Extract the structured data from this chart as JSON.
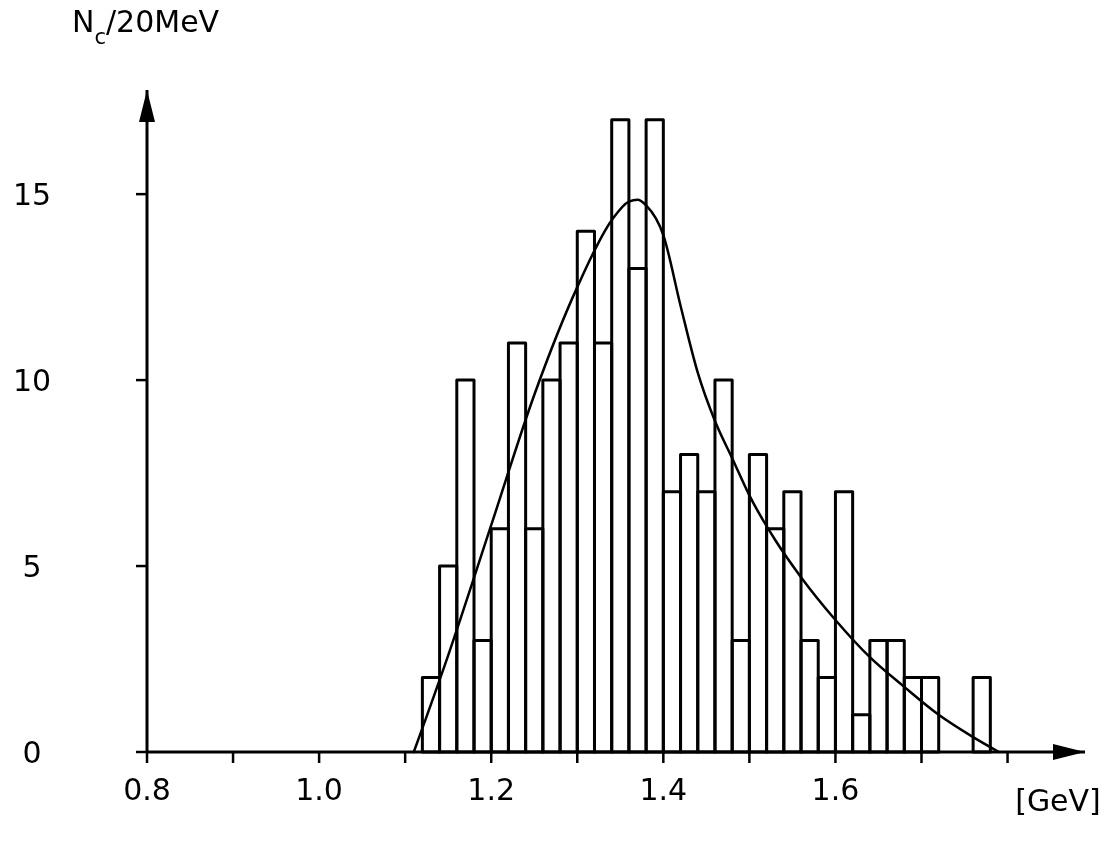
{
  "chart_data": {
    "type": "histogram",
    "ylabel": "N$_{c}$/20MeV",
    "xlabel": "[GeV]",
    "bins": [
      1.12,
      1.14,
      1.16,
      1.18,
      1.2,
      1.22,
      1.24,
      1.26,
      1.28,
      1.3,
      1.32,
      1.34,
      1.36,
      1.38,
      1.4,
      1.42,
      1.44,
      1.46,
      1.48,
      1.5,
      1.52,
      1.54,
      1.56,
      1.58,
      1.6,
      1.62,
      1.64,
      1.66,
      1.68,
      1.7,
      1.72,
      1.74,
      1.76,
      1.78
    ],
    "values": [
      2,
      5,
      10,
      3,
      6,
      11,
      6,
      10,
      11,
      14,
      11,
      17,
      13,
      17,
      7,
      8,
      7,
      10,
      3,
      8,
      6,
      7,
      3,
      2,
      7,
      1,
      3,
      3,
      2,
      2,
      0,
      0,
      2
    ],
    "color": "#000000",
    "series": [
      {
        "type": "line",
        "color": "#000000",
        "x": [
          1.11,
          1.15,
          1.2,
          1.25,
          1.3,
          1.34,
          1.36,
          1.37,
          1.38,
          1.4,
          1.42,
          1.44,
          1.46,
          1.48,
          1.5,
          1.53,
          1.56,
          1.6,
          1.64,
          1.68,
          1.72,
          1.76,
          1.79
        ],
        "values": [
          0,
          2.6,
          6.1,
          9.6,
          12.5,
          14.3,
          14.8,
          14.85,
          14.7,
          13.9,
          12.0,
          10.2,
          8.9,
          7.9,
          6.9,
          5.7,
          4.7,
          3.55,
          2.55,
          1.75,
          1.0,
          0.4,
          0
        ]
      }
    ],
    "xlim": [
      0.8,
      1.89
    ],
    "ylim": [
      0,
      17.8
    ],
    "xticks": [
      0.8,
      {
        "value": 0.9,
        "label": null
      },
      {
        "value": 1.0,
        "label": "1.0"
      },
      {
        "value": 1.1,
        "label": null
      },
      1.2,
      {
        "value": 1.3,
        "label": null
      },
      1.4,
      {
        "value": 1.5,
        "label": null
      },
      1.6,
      {
        "value": 1.7,
        "label": null
      },
      {
        "value": 1.8,
        "label": null
      }
    ],
    "yticks": [
      0,
      5,
      10,
      15
    ],
    "grid": false,
    "line_style": "solid",
    "marker": "none"
  }
}
